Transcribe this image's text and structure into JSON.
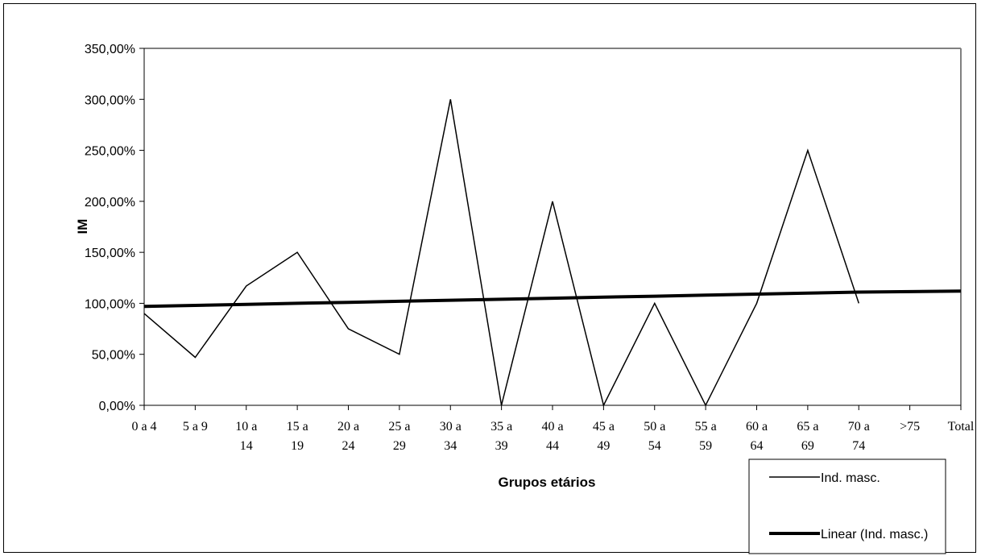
{
  "chart_data": {
    "type": "line",
    "title": "",
    "xlabel": "Grupos etários",
    "ylabel": "IM",
    "categories": [
      [
        "0 a 4",
        ""
      ],
      [
        "5 a 9",
        ""
      ],
      [
        "10 a",
        "14"
      ],
      [
        "15 a",
        "19"
      ],
      [
        "20 a",
        "24"
      ],
      [
        "25 a",
        "29"
      ],
      [
        "30 a",
        "34"
      ],
      [
        "35 a",
        "39"
      ],
      [
        "40 a",
        "44"
      ],
      [
        "45 a",
        "49"
      ],
      [
        "50 a",
        "54"
      ],
      [
        "55 a",
        "59"
      ],
      [
        "60 a",
        "64"
      ],
      [
        "65 a",
        "69"
      ],
      [
        "70 a",
        "74"
      ],
      [
        ">75",
        ""
      ],
      [
        "Total",
        ""
      ]
    ],
    "ylim": [
      0,
      3.5
    ],
    "yticks": [
      0,
      0.5,
      1.0,
      1.5,
      2.0,
      2.5,
      3.0,
      3.5
    ],
    "ytick_labels": [
      "0,00%",
      "50,00%",
      "100,00%",
      "150,00%",
      "200,00%",
      "250,00%",
      "300,00%",
      "350,00%"
    ],
    "grid": false,
    "series": [
      {
        "name": "Ind. masc.",
        "color": "#000000",
        "values": [
          0.9,
          0.47,
          1.17,
          1.5,
          0.75,
          0.5,
          3.0,
          0.0,
          2.0,
          0.0,
          1.0,
          0.0,
          1.0,
          2.5,
          1.0,
          null,
          null
        ]
      },
      {
        "name": "Linear (Ind. masc.)",
        "color": "#000000",
        "trendline": true,
        "values": [
          0.97,
          0.98,
          0.99,
          1.0,
          1.01,
          1.02,
          1.03,
          1.04,
          1.05,
          1.06,
          1.07,
          1.08,
          1.09,
          1.1,
          1.11,
          null,
          1.12
        ]
      }
    ],
    "legend_position": "bottom-right"
  }
}
